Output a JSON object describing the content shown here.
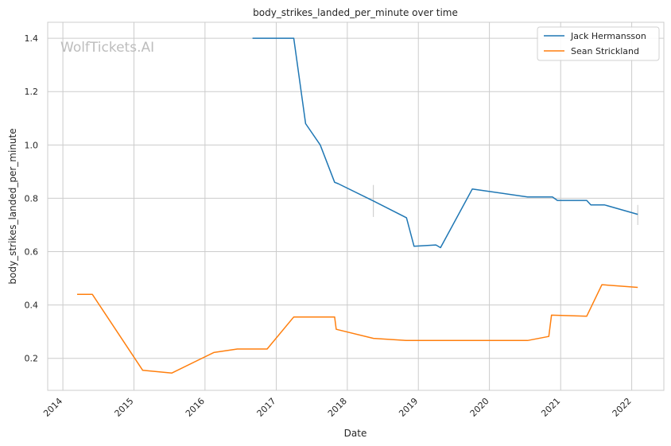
{
  "watermark": "WolfTickets.AI",
  "chart_data": {
    "type": "line",
    "title": "body_strikes_landed_per_minute over time",
    "xlabel": "Date",
    "ylabel": "body_strikes_landed_per_minute",
    "x_ticks": [
      "2014",
      "2015",
      "2016",
      "2017",
      "2018",
      "2019",
      "2020",
      "2021",
      "2022"
    ],
    "y_ticks": [
      "0.2",
      "0.4",
      "0.6",
      "0.8",
      "1.0",
      "1.2",
      "1.4"
    ],
    "xlim": [
      "2013-10-15",
      "2022-06-15"
    ],
    "ylim": [
      0.08,
      1.46
    ],
    "grid": true,
    "legend_position": "top-right",
    "series": [
      {
        "name": "Jack Hermansson",
        "color": "#1f77b4",
        "points": [
          [
            "2016-09-01",
            1.4
          ],
          [
            "2017-04-01",
            1.4
          ],
          [
            "2017-06-01",
            1.08
          ],
          [
            "2017-08-15",
            1.0
          ],
          [
            "2017-10-28",
            0.86
          ],
          [
            "2017-11-15",
            0.855
          ],
          [
            "2018-05-15",
            0.79
          ],
          [
            "2018-11-01",
            0.727
          ],
          [
            "2018-12-10",
            0.62
          ],
          [
            "2019-04-01",
            0.625
          ],
          [
            "2019-04-25",
            0.615
          ],
          [
            "2019-10-05",
            0.835
          ],
          [
            "2020-07-15",
            0.805
          ],
          [
            "2020-11-20",
            0.805
          ],
          [
            "2020-12-15",
            0.792
          ],
          [
            "2021-05-15",
            0.792
          ],
          [
            "2021-06-05",
            0.775
          ],
          [
            "2021-08-15",
            0.775
          ],
          [
            "2022-02-01",
            0.74
          ]
        ],
        "error_bars": [
          {
            "x": "2018-05-15",
            "low": 0.73,
            "high": 0.85
          },
          {
            "x": "2022-02-01",
            "low": 0.7,
            "high": 0.775
          }
        ]
      },
      {
        "name": "Sean Strickland",
        "color": "#ff7f0e",
        "points": [
          [
            "2014-03-15",
            0.44
          ],
          [
            "2014-06-01",
            0.44
          ],
          [
            "2015-02-15",
            0.155
          ],
          [
            "2015-07-15",
            0.145
          ],
          [
            "2016-02-15",
            0.222
          ],
          [
            "2016-06-15",
            0.235
          ],
          [
            "2016-11-15",
            0.235
          ],
          [
            "2017-04-01",
            0.355
          ],
          [
            "2017-10-28",
            0.355
          ],
          [
            "2017-11-05",
            0.309
          ],
          [
            "2018-05-15",
            0.275
          ],
          [
            "2018-11-01",
            0.267
          ],
          [
            "2020-07-15",
            0.267
          ],
          [
            "2020-11-01",
            0.282
          ],
          [
            "2020-11-15",
            0.362
          ],
          [
            "2021-05-15",
            0.358
          ],
          [
            "2021-08-01",
            0.476
          ],
          [
            "2022-02-01",
            0.466
          ]
        ]
      }
    ]
  }
}
